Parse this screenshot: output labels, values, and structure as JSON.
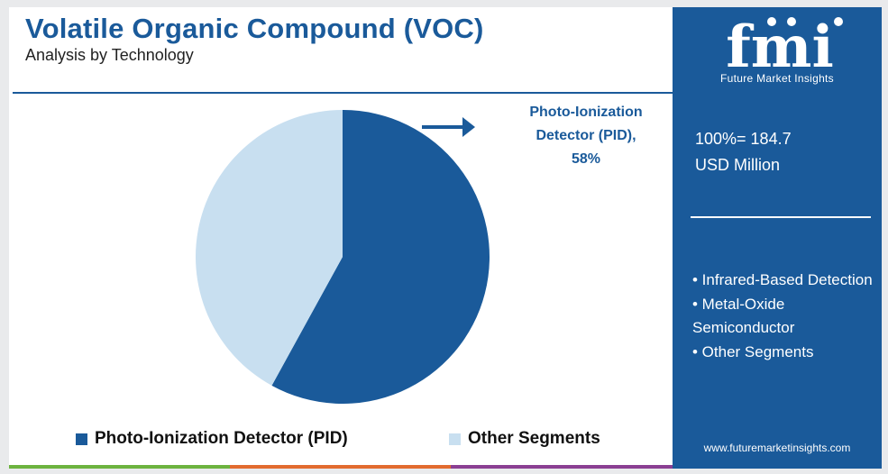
{
  "header": {
    "title": "Volatile Organic Compound (VOC)",
    "subtitle": "Analysis by Technology"
  },
  "chart_data": {
    "type": "pie",
    "slices": [
      {
        "label": "Photo-Ionization Detector (PID)",
        "value": 58,
        "color": "#1a5a9a"
      },
      {
        "label": "Other Segments",
        "value": 42,
        "color": "#c8dff0"
      }
    ]
  },
  "callout": {
    "line1": "Photo-Ionization",
    "line2": "Detector (PID),",
    "line3": "58%"
  },
  "legend": [
    {
      "label": "Photo-Ionization Detector (PID)",
      "color": "#1a5a9a"
    },
    {
      "label": "Other Segments",
      "color": "#c8dff0"
    }
  ],
  "sidebar": {
    "logo_text": "fmi",
    "logo_tagline": "Future Market Insights",
    "total_line1": "100%= 184.7",
    "total_line2": "USD Million",
    "other_segments": [
      "• Infrared-Based Detection",
      "• Metal-Oxide Semiconductor",
      "• Other Segments"
    ],
    "website": "www.futuremarketinsights.com"
  },
  "colors": {
    "brand_blue": "#1a5a9a",
    "light_blue": "#c8dff0",
    "bar_green": "#6cb33f",
    "bar_orange": "#e26b2f",
    "bar_purple": "#8b3f93"
  }
}
